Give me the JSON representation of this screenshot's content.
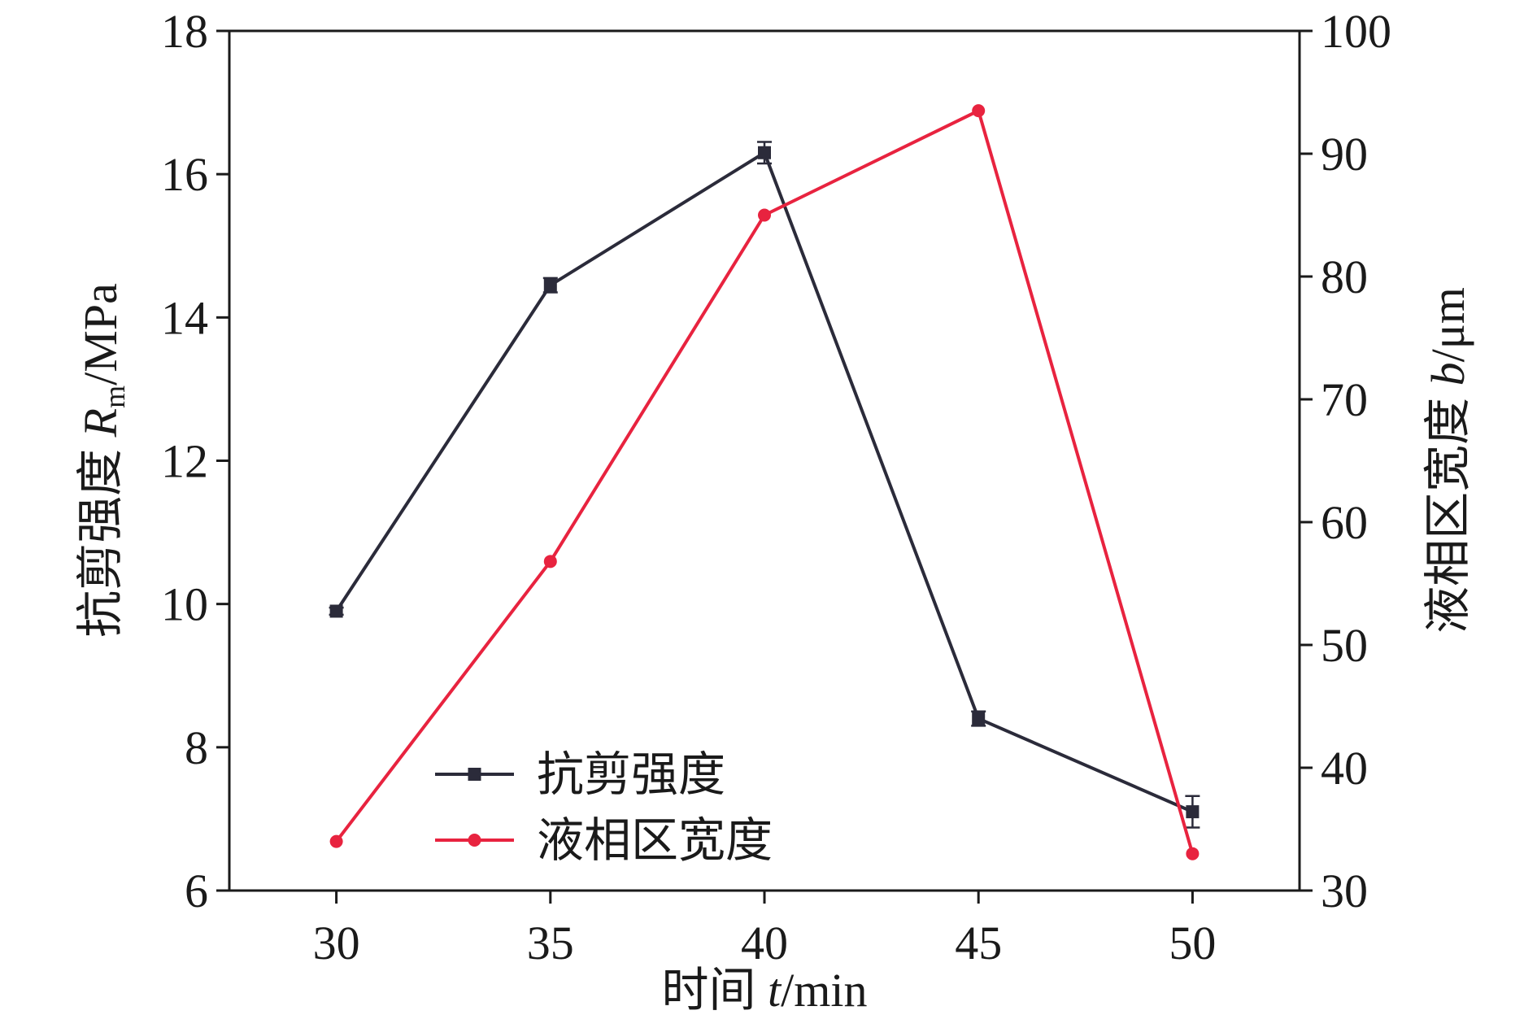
{
  "chart_data": {
    "type": "line",
    "x_axis": {
      "label_prefix": "时间 ",
      "label_var": "t",
      "label_unit": "/min",
      "ticks": [
        30,
        35,
        40,
        45,
        50
      ],
      "range": [
        27.5,
        52.5
      ]
    },
    "y_axis_left": {
      "label_prefix": "抗剪强度 ",
      "label_var": "R",
      "label_sub": "m",
      "label_unit": "/MPa",
      "ticks": [
        6,
        8,
        10,
        12,
        14,
        16,
        18
      ],
      "range": [
        6,
        18
      ]
    },
    "y_axis_right": {
      "label_prefix": "液相区宽度 ",
      "label_var": "b",
      "label_unit": "/μm",
      "ticks": [
        30,
        40,
        50,
        60,
        70,
        80,
        90,
        100
      ],
      "range": [
        30,
        100
      ]
    },
    "series": [
      {
        "name": "抗剪强度",
        "axis": "left",
        "color": "#2b2b3a",
        "marker": "square",
        "x": [
          30,
          35,
          40,
          45,
          50
        ],
        "y": [
          9.9,
          14.45,
          16.3,
          8.4,
          7.1
        ],
        "error": [
          0.05,
          0.1,
          0.15,
          0.1,
          0.22
        ]
      },
      {
        "name": "液相区宽度",
        "axis": "right",
        "color": "#e8233f",
        "marker": "circle",
        "x": [
          30,
          35,
          40,
          45,
          50
        ],
        "y": [
          34,
          56.8,
          85,
          93.5,
          33
        ]
      }
    ],
    "legend": {
      "position": "bottom-left"
    },
    "grid": false
  }
}
